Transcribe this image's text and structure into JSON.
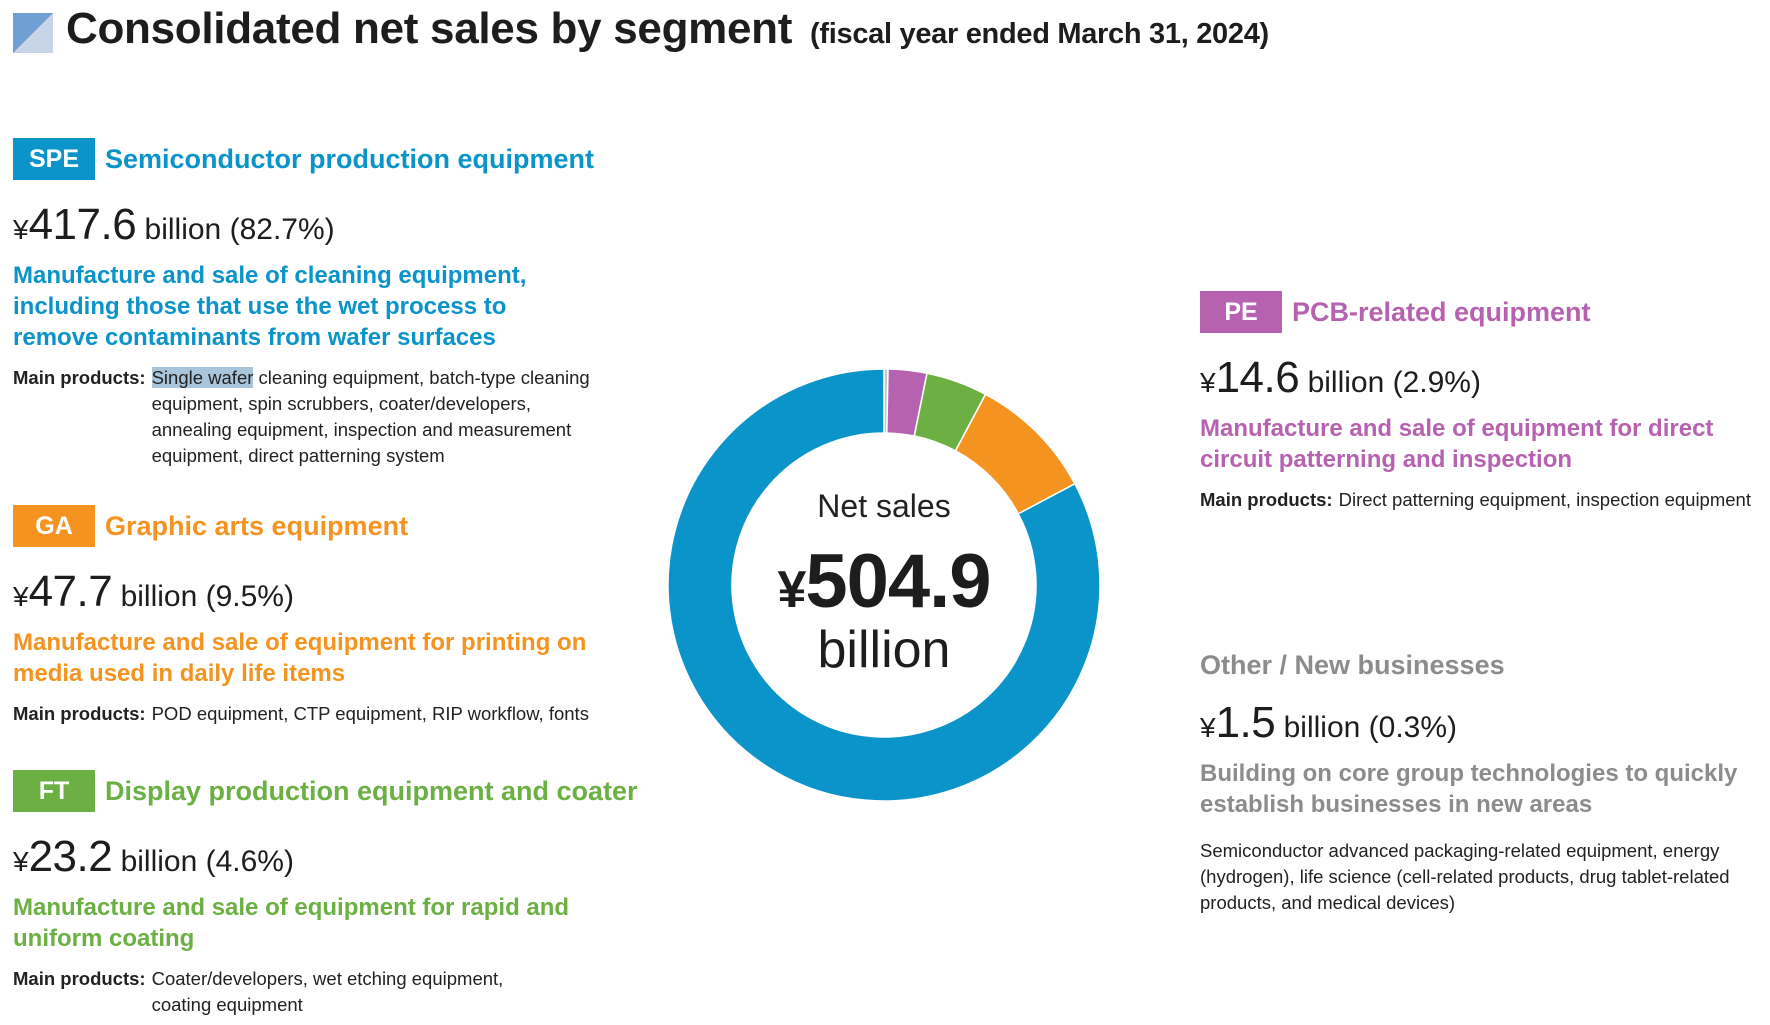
{
  "header": {
    "title": "Consolidated net sales by segment",
    "subtitle": "(fiscal year ended March 31, 2024)"
  },
  "segments": {
    "spe": {
      "tag": "SPE",
      "name": "Semiconductor production equipment",
      "currency": "¥",
      "amount": "417.6",
      "unit": "billion (82.7%)",
      "description": "Manufacture and sale of cleaning equipment, including those that use the wet process to remove contaminants from wafer surfaces",
      "products_label": "Main products:",
      "products_highlight": "Single wafer",
      "products_text": " cleaning equipment, batch-type cleaning equipment, spin scrubbers, coater/developers, annealing equipment, inspection and measurement equipment, direct patterning system"
    },
    "ga": {
      "tag": "GA",
      "name": "Graphic arts equipment",
      "currency": "¥",
      "amount": "47.7",
      "unit": "billion (9.5%)",
      "description": "Manufacture and sale of equipment for printing on media used in daily life items",
      "products_label": "Main products:",
      "products_text": "POD equipment, CTP equipment, RIP workflow, fonts"
    },
    "ft": {
      "tag": "FT",
      "name": "Display production equipment and coater",
      "currency": "¥",
      "amount": "23.2",
      "unit": "billion (4.6%)",
      "description": "Manufacture and sale of equipment for rapid and uniform coating",
      "products_label": "Main products:",
      "products_text": "Coater/developers, wet etching equipment, coating equipment"
    },
    "pe": {
      "tag": "PE",
      "name": "PCB-related equipment",
      "currency": "¥",
      "amount": "14.6",
      "unit": "billion (2.9%)",
      "description": "Manufacture and sale of equipment for direct circuit patterning and inspection",
      "products_label": "Main products:",
      "products_text": "Direct patterning equipment, inspection equipment"
    },
    "other": {
      "name": "Other / New businesses",
      "currency": "¥",
      "amount": "1.5",
      "unit": "billion (0.3%)",
      "description": "Building on core group technologies to quickly establish businesses in new areas",
      "products_text": "Semiconductor advanced packaging-related equipment, energy (hydrogen), life science (cell-related products, drug tablet-related products, and medical devices)"
    }
  },
  "center": {
    "label": "Net sales",
    "currency": "¥",
    "value": "504.9",
    "unit": "billion"
  },
  "colors": {
    "spe": "#0b94c9",
    "ga": "#f4931f",
    "ft": "#6cb044",
    "pe": "#b762b0",
    "other": "#c8c8c8",
    "title_mark_light": "#c7d5e6",
    "title_mark_dark": "#6f9fd3"
  },
  "chart_data": {
    "type": "pie",
    "style": "donut",
    "title": "Net sales ¥504.9 billion",
    "unit": "billion yen",
    "categories": [
      "SPE",
      "GA",
      "FT",
      "PE",
      "Other / New businesses"
    ],
    "values": [
      417.6,
      47.7,
      23.2,
      14.6,
      1.5
    ],
    "percentages": [
      82.7,
      9.5,
      4.6,
      2.9,
      0.3
    ],
    "total": 504.9,
    "colors": [
      "#0b94c9",
      "#f4931f",
      "#6cb044",
      "#b762b0",
      "#c8c8c8"
    ]
  }
}
